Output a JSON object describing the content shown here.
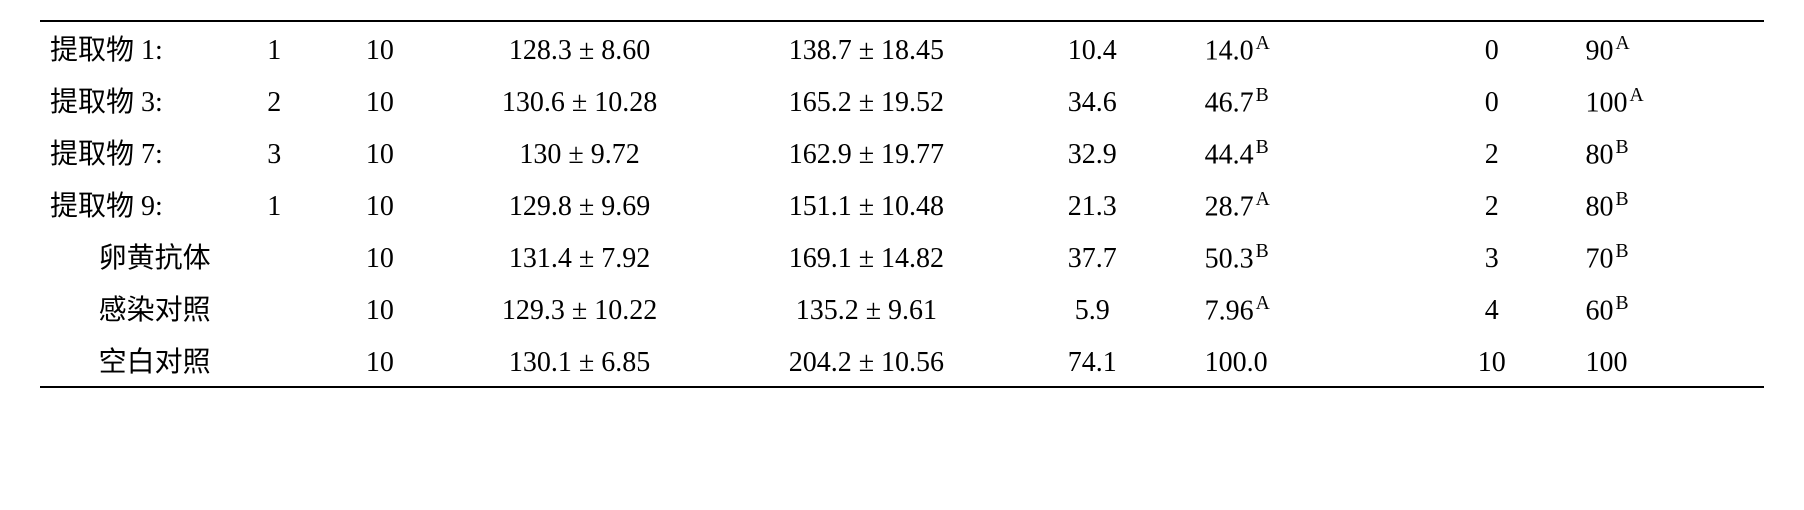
{
  "rows": [
    {
      "label": "提取物 1:",
      "idx": "1",
      "n": "10",
      "m1": "128.3 ± 8.60",
      "m2": "138.7 ± 18.45",
      "v1": "10.4",
      "v2": "14.0",
      "v2_sup": "A",
      "v3": "0",
      "v4": "90",
      "v4_sup": "A",
      "label_center": false
    },
    {
      "label": "提取物 3:",
      "idx": "2",
      "n": "10",
      "m1": "130.6 ± 10.28",
      "m2": "165.2 ± 19.52",
      "v1": "34.6",
      "v2": "46.7",
      "v2_sup": "B",
      "v3": "0",
      "v4": "100",
      "v4_sup": "A",
      "label_center": false
    },
    {
      "label": "提取物 7:",
      "idx": "3",
      "n": "10",
      "m1": "130 ± 9.72",
      "m2": "162.9 ± 19.77",
      "v1": "32.9",
      "v2": "44.4",
      "v2_sup": "B",
      "v3": "2",
      "v4": "80",
      "v4_sup": "B",
      "label_center": false
    },
    {
      "label": "提取物 9:",
      "idx": "1",
      "n": "10",
      "m1": "129.8 ± 9.69",
      "m2": "151.1 ± 10.48",
      "v1": "21.3",
      "v2": "28.7",
      "v2_sup": "A",
      "v3": "2",
      "v4": "80",
      "v4_sup": "B",
      "label_center": false
    },
    {
      "label": "卵黄抗体",
      "idx": "",
      "n": "10",
      "m1": "131.4 ± 7.92",
      "m2": "169.1 ± 14.82",
      "v1": "37.7",
      "v2": "50.3",
      "v2_sup": "B",
      "v3": "3",
      "v4": "70",
      "v4_sup": "B",
      "label_center": true
    },
    {
      "label": "感染对照",
      "idx": "",
      "n": "10",
      "m1": "129.3 ± 10.22",
      "m2": "135.2 ± 9.61",
      "v1": "5.9",
      "v2": "7.96",
      "v2_sup": "A",
      "v3": "4",
      "v4": "60",
      "v4_sup": "B",
      "label_center": true
    },
    {
      "label": "空白对照",
      "idx": "",
      "n": "10",
      "m1": "130.1 ± 6.85",
      "m2": "204.2 ± 10.56",
      "v1": "74.1",
      "v2": "100.0",
      "v2_sup": "",
      "v3": "10",
      "v4": "100",
      "v4_sup": "",
      "label_center": true
    }
  ],
  "colors": {
    "text": "#000000",
    "background": "#ffffff",
    "border": "#000000"
  },
  "typography": {
    "font_family": "Times New Roman / SimSun",
    "font_size_pt": 14,
    "superscript_scale": 0.7
  },
  "column_widths_pct": [
    12,
    3,
    6,
    16,
    16,
    9,
    12,
    8,
    10
  ]
}
